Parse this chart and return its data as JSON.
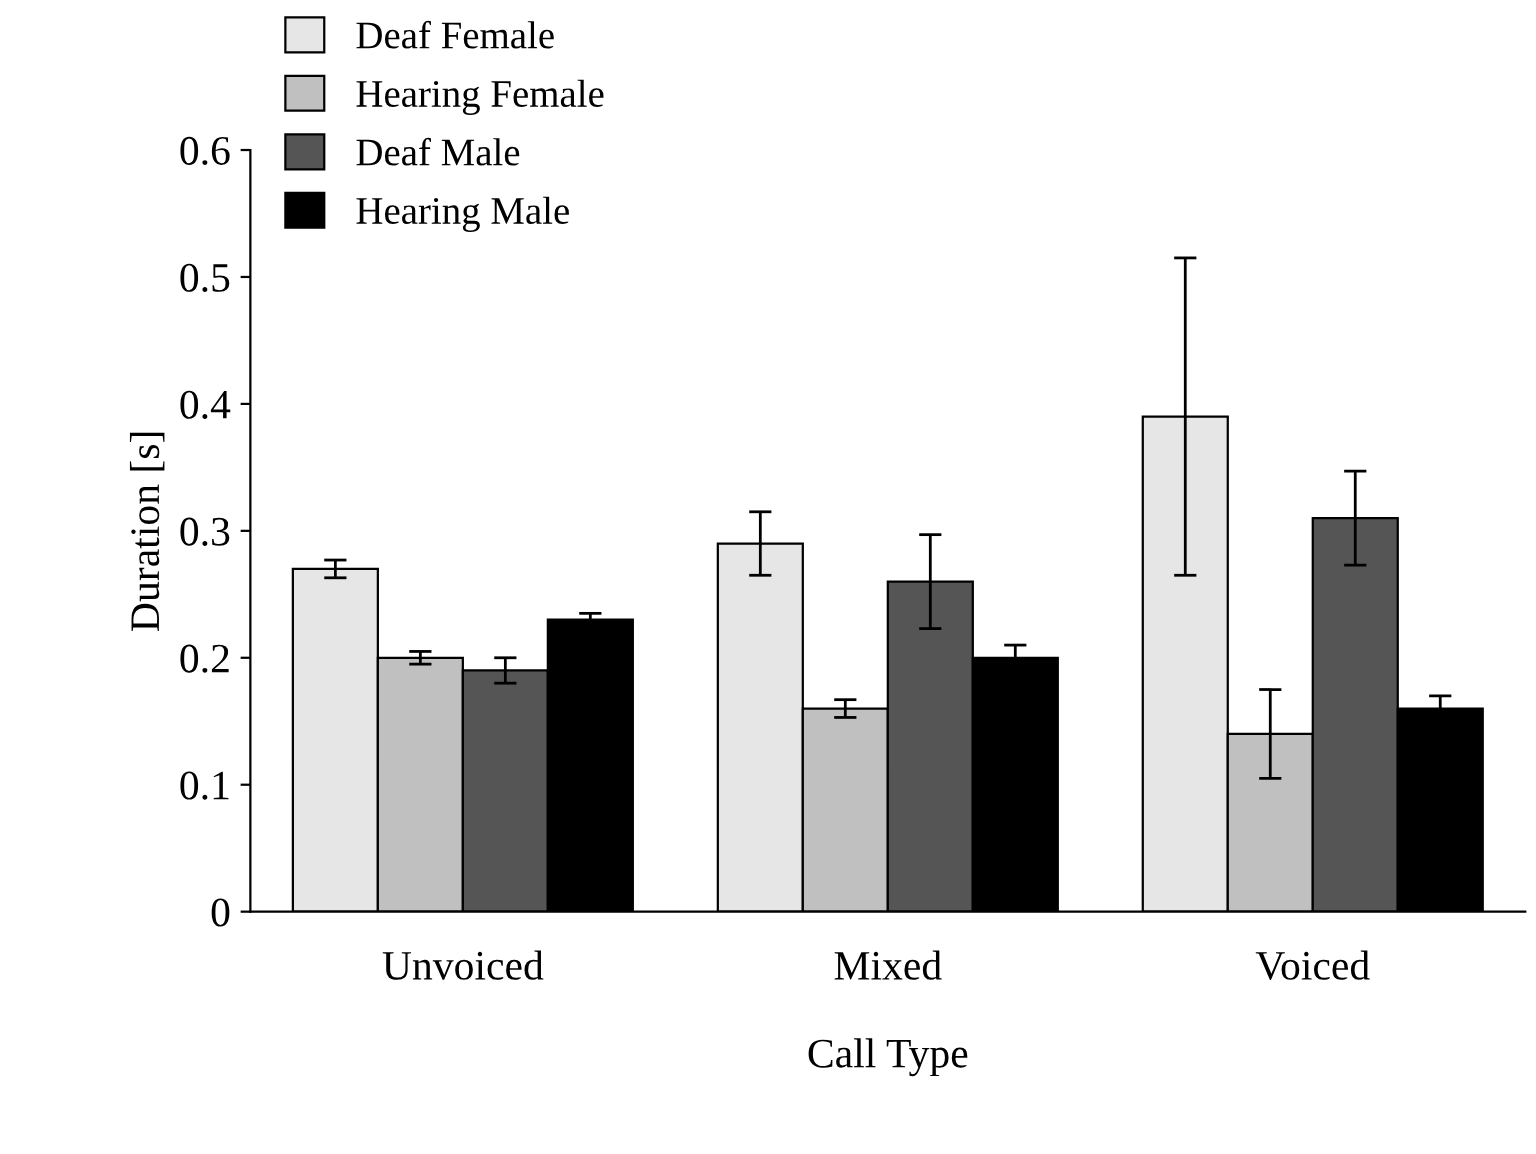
{
  "chart_data": {
    "type": "bar",
    "xlabel": "Call Type",
    "ylabel": "Duration [s]",
    "categories": [
      "Unvoiced",
      "Mixed",
      "Voiced"
    ],
    "series": [
      {
        "name": "Deaf Female",
        "color": "#e6e6e6",
        "values": [
          0.27,
          0.29,
          0.39
        ],
        "errors": [
          0.007,
          0.025,
          0.125
        ]
      },
      {
        "name": "Hearing Female",
        "color": "#c0c0c0",
        "values": [
          0.2,
          0.16,
          0.14
        ],
        "errors": [
          0.005,
          0.007,
          0.035
        ]
      },
      {
        "name": "Deaf Male",
        "color": "#555555",
        "values": [
          0.19,
          0.26,
          0.31
        ],
        "errors": [
          0.01,
          0.037,
          0.037
        ]
      },
      {
        "name": "Hearing Male",
        "color": "#000000",
        "values": [
          0.23,
          0.2,
          0.16
        ],
        "errors": [
          0.005,
          0.01,
          0.01
        ]
      }
    ],
    "ylim": [
      0,
      0.6
    ],
    "yticks": [
      0,
      0.1,
      0.2,
      0.3,
      0.4,
      0.5,
      0.6
    ],
    "grid": false,
    "legend": "top left"
  }
}
